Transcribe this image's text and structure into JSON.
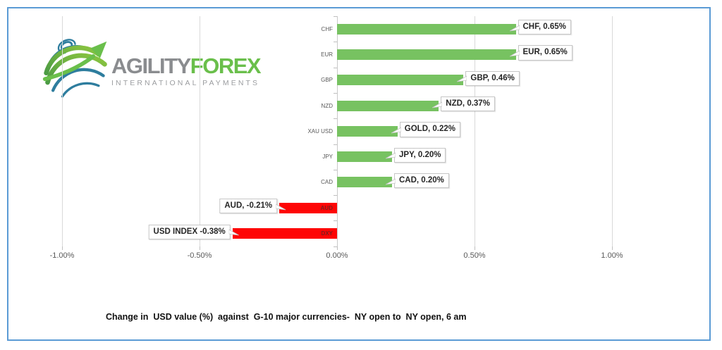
{
  "window": {
    "background": "#ffffff",
    "frame_border_color": "#5B9BD5"
  },
  "logo": {
    "brand_primary": "AGILITY",
    "brand_secondary": "FOREX",
    "tagline": "INTERNATIONAL PAYMENTS",
    "brand_primary_color": "#8A8C8F",
    "brand_secondary_color": "#6ABF4B",
    "globe_blue": "#2E7D9E",
    "globe_green": "#74BE4B"
  },
  "chart_data": {
    "type": "bar",
    "orientation": "horizontal",
    "title": "Change in  USD value (%)  against  G-10 major currencies-  NY open to  NY open, 6 am",
    "categories": [
      "CHF",
      "EUR",
      "GBP",
      "NZD",
      "XAU USD",
      "JPY",
      "CAD",
      "AUD",
      "DXY"
    ],
    "values": [
      0.65,
      0.65,
      0.46,
      0.37,
      0.22,
      0.2,
      0.2,
      -0.21,
      -0.38
    ],
    "data_labels": [
      "CHF, 0.65%",
      "EUR, 0.65%",
      "GBP, 0.46%",
      "NZD, 0.37%",
      "GOLD, 0.22%",
      "JPY, 0.20%",
      "CAD, 0.20%",
      "AUD, -0.21%",
      "USD INDEX -0.38%"
    ],
    "x_ticks": [
      {
        "label": "-1.00%",
        "value": -1.0
      },
      {
        "label": "-0.50%",
        "value": -0.5
      },
      {
        "label": "0.00%",
        "value": 0.0
      },
      {
        "label": "0.50%",
        "value": 0.5
      },
      {
        "label": "1.00%",
        "value": 1.0
      }
    ],
    "xlim": [
      -1.0,
      1.0
    ],
    "grid": true,
    "legend_position": "none",
    "positive_color": "#77C261",
    "negative_color": "#FE0505",
    "gridline_color": "#D9D9D9",
    "axis_label_color": "#595959"
  }
}
